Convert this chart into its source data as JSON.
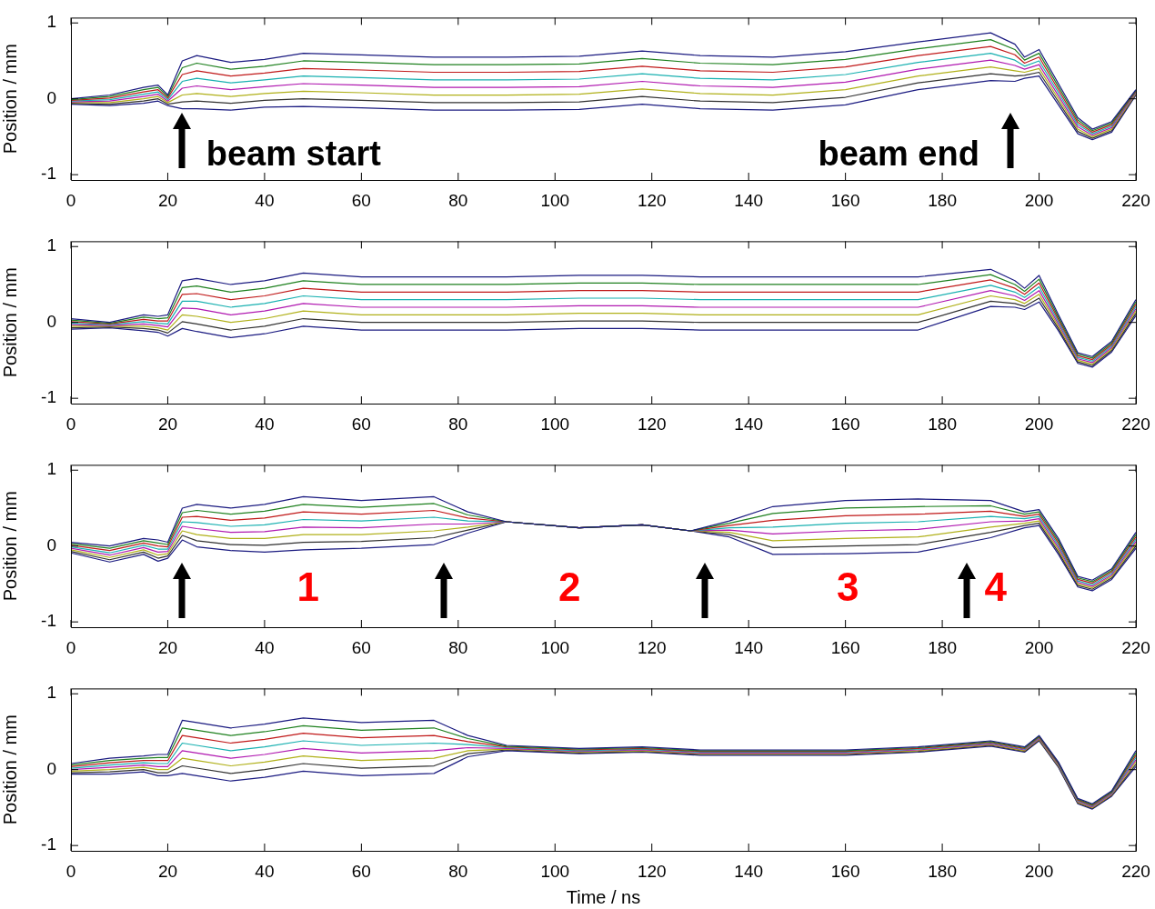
{
  "chart_data": [
    {
      "type": "line",
      "ylabel": "Position / mm",
      "xlim": [
        0,
        220
      ],
      "xticks": [
        0,
        20,
        40,
        60,
        80,
        100,
        120,
        140,
        160,
        180,
        200,
        220
      ],
      "ylim": [
        -1.07,
        1.07
      ],
      "yticks": [
        -1,
        0,
        1
      ],
      "x": [
        0,
        8,
        15,
        18,
        20,
        23,
        26,
        33,
        40,
        48,
        60,
        75,
        90,
        105,
        118,
        130,
        145,
        160,
        175,
        190,
        195,
        197,
        200,
        204,
        208,
        211,
        215,
        220
      ],
      "annotations": [
        "beam start",
        "beam end"
      ],
      "series": [
        {
          "color": "#1a1a80",
          "values": [
            0,
            0.05,
            0.15,
            0.18,
            0.05,
            0.5,
            0.57,
            0.48,
            0.52,
            0.6,
            0.58,
            0.55,
            0.55,
            0.56,
            0.63,
            0.57,
            0.55,
            0.62,
            0.75,
            0.87,
            0.72,
            0.55,
            0.65,
            0.2,
            -0.25,
            -0.4,
            -0.3,
            0.12
          ]
        },
        {
          "color": "#1e801e",
          "values": [
            -0.01,
            0.03,
            0.12,
            0.15,
            0.03,
            0.41,
            0.47,
            0.39,
            0.43,
            0.5,
            0.48,
            0.45,
            0.45,
            0.46,
            0.53,
            0.47,
            0.45,
            0.52,
            0.66,
            0.78,
            0.65,
            0.51,
            0.6,
            0.16,
            -0.28,
            -0.42,
            -0.32,
            0.11
          ]
        },
        {
          "color": "#c01818",
          "values": [
            -0.02,
            0.01,
            0.09,
            0.12,
            0.01,
            0.32,
            0.37,
            0.3,
            0.34,
            0.4,
            0.38,
            0.35,
            0.35,
            0.36,
            0.43,
            0.37,
            0.35,
            0.42,
            0.57,
            0.69,
            0.58,
            0.47,
            0.55,
            0.12,
            -0.31,
            -0.44,
            -0.34,
            0.1
          ]
        },
        {
          "color": "#18b0b0",
          "values": [
            -0.03,
            -0.01,
            0.06,
            0.09,
            -0.01,
            0.23,
            0.27,
            0.21,
            0.25,
            0.3,
            0.28,
            0.25,
            0.25,
            0.26,
            0.33,
            0.27,
            0.25,
            0.32,
            0.48,
            0.6,
            0.51,
            0.43,
            0.5,
            0.08,
            -0.34,
            -0.46,
            -0.36,
            0.09
          ]
        },
        {
          "color": "#b018b0",
          "values": [
            -0.04,
            -0.03,
            0.03,
            0.06,
            -0.03,
            0.14,
            0.17,
            0.12,
            0.16,
            0.2,
            0.18,
            0.15,
            0.15,
            0.16,
            0.23,
            0.17,
            0.15,
            0.22,
            0.39,
            0.51,
            0.44,
            0.39,
            0.45,
            0.04,
            -0.37,
            -0.48,
            -0.38,
            0.08
          ]
        },
        {
          "color": "#b0b018",
          "values": [
            -0.05,
            -0.05,
            0,
            0.03,
            -0.05,
            0.05,
            0.07,
            0.03,
            0.07,
            0.1,
            0.08,
            0.05,
            0.05,
            0.06,
            0.13,
            0.07,
            0.05,
            0.12,
            0.3,
            0.42,
            0.37,
            0.35,
            0.4,
            0,
            -0.4,
            -0.5,
            -0.4,
            0.07
          ]
        },
        {
          "color": "#303030",
          "values": [
            -0.06,
            -0.07,
            -0.03,
            0,
            -0.07,
            -0.04,
            -0.03,
            -0.06,
            -0.02,
            0,
            -0.02,
            -0.05,
            -0.05,
            -0.04,
            0.03,
            -0.03,
            -0.05,
            0.02,
            0.21,
            0.33,
            0.3,
            0.31,
            0.35,
            -0.04,
            -0.43,
            -0.52,
            -0.42,
            0.06
          ]
        },
        {
          "color": "#1a1a80",
          "values": [
            -0.07,
            -0.09,
            -0.06,
            -0.03,
            -0.09,
            -0.13,
            -0.13,
            -0.15,
            -0.11,
            -0.1,
            -0.12,
            -0.15,
            -0.15,
            -0.14,
            -0.07,
            -0.13,
            -0.15,
            -0.08,
            0.12,
            0.24,
            0.23,
            0.27,
            0.3,
            -0.08,
            -0.46,
            -0.54,
            -0.44,
            0.05
          ]
        }
      ]
    },
    {
      "type": "line",
      "ylabel": "Position / mm",
      "xlim": [
        0,
        220
      ],
      "xticks": [
        0,
        20,
        40,
        60,
        80,
        100,
        120,
        140,
        160,
        180,
        200,
        220
      ],
      "ylim": [
        -1.07,
        1.07
      ],
      "yticks": [
        -1,
        0,
        1
      ],
      "x": [
        0,
        8,
        15,
        18,
        20,
        23,
        26,
        33,
        40,
        48,
        60,
        75,
        90,
        105,
        118,
        130,
        145,
        160,
        175,
        190,
        195,
        197,
        200,
        204,
        208,
        211,
        215,
        220
      ],
      "series": [
        {
          "color": "#1a1a80",
          "values": [
            0.05,
            0,
            0.1,
            0.08,
            0.1,
            0.55,
            0.58,
            0.5,
            0.55,
            0.65,
            0.6,
            0.6,
            0.6,
            0.62,
            0.62,
            0.6,
            0.6,
            0.6,
            0.6,
            0.7,
            0.55,
            0.45,
            0.62,
            0.1,
            -0.4,
            -0.45,
            -0.25,
            0.3
          ]
        },
        {
          "color": "#1e801e",
          "values": [
            0.03,
            -0.01,
            0.07,
            0.05,
            0.06,
            0.46,
            0.48,
            0.4,
            0.45,
            0.55,
            0.5,
            0.5,
            0.5,
            0.52,
            0.52,
            0.5,
            0.5,
            0.5,
            0.5,
            0.63,
            0.5,
            0.41,
            0.57,
            0.07,
            -0.42,
            -0.47,
            -0.27,
            0.27
          ]
        },
        {
          "color": "#c01818",
          "values": [
            0.01,
            -0.02,
            0.04,
            0.02,
            0.02,
            0.37,
            0.38,
            0.3,
            0.35,
            0.45,
            0.4,
            0.4,
            0.4,
            0.42,
            0.42,
            0.4,
            0.4,
            0.4,
            0.4,
            0.56,
            0.45,
            0.37,
            0.52,
            0.04,
            -0.44,
            -0.49,
            -0.29,
            0.24
          ]
        },
        {
          "color": "#18b0b0",
          "values": [
            -0.01,
            -0.03,
            0.01,
            -0.01,
            -0.02,
            0.28,
            0.28,
            0.2,
            0.25,
            0.35,
            0.3,
            0.3,
            0.3,
            0.32,
            0.32,
            0.3,
            0.3,
            0.3,
            0.3,
            0.49,
            0.4,
            0.33,
            0.47,
            0.01,
            -0.46,
            -0.51,
            -0.31,
            0.21
          ]
        },
        {
          "color": "#b018b0",
          "values": [
            -0.03,
            -0.04,
            -0.02,
            -0.04,
            -0.06,
            0.19,
            0.18,
            0.1,
            0.15,
            0.25,
            0.2,
            0.2,
            0.2,
            0.22,
            0.22,
            0.2,
            0.2,
            0.2,
            0.2,
            0.42,
            0.35,
            0.29,
            0.42,
            -0.02,
            -0.48,
            -0.53,
            -0.33,
            0.18
          ]
        },
        {
          "color": "#b0b018",
          "values": [
            -0.05,
            -0.05,
            -0.05,
            -0.07,
            -0.1,
            0.1,
            0.08,
            0,
            0.05,
            0.15,
            0.1,
            0.1,
            0.1,
            0.12,
            0.12,
            0.1,
            0.1,
            0.1,
            0.1,
            0.35,
            0.3,
            0.25,
            0.37,
            -0.05,
            -0.5,
            -0.55,
            -0.35,
            0.15
          ]
        },
        {
          "color": "#303030",
          "values": [
            -0.07,
            -0.06,
            -0.08,
            -0.1,
            -0.14,
            0.01,
            -0.02,
            -0.1,
            -0.05,
            0.05,
            0,
            0,
            0,
            0.02,
            0.02,
            0,
            0,
            0,
            0,
            0.28,
            0.25,
            0.21,
            0.32,
            -0.08,
            -0.52,
            -0.57,
            -0.37,
            0.12
          ]
        },
        {
          "color": "#1a1a80",
          "values": [
            -0.09,
            -0.07,
            -0.11,
            -0.13,
            -0.18,
            -0.08,
            -0.12,
            -0.2,
            -0.15,
            -0.05,
            -0.1,
            -0.1,
            -0.1,
            -0.08,
            -0.08,
            -0.1,
            -0.1,
            -0.1,
            -0.1,
            0.21,
            0.2,
            0.17,
            0.27,
            -0.11,
            -0.54,
            -0.59,
            -0.39,
            0.09
          ]
        }
      ]
    },
    {
      "type": "line",
      "ylabel": "Position / mm",
      "xlim": [
        0,
        220
      ],
      "xticks": [
        0,
        20,
        40,
        60,
        80,
        100,
        120,
        140,
        160,
        180,
        200,
        220
      ],
      "ylim": [
        -1.07,
        1.07
      ],
      "yticks": [
        -1,
        0,
        1
      ],
      "x": [
        0,
        8,
        15,
        18,
        20,
        23,
        26,
        33,
        40,
        48,
        60,
        75,
        82,
        90,
        105,
        118,
        128,
        136,
        145,
        160,
        175,
        190,
        197,
        200,
        204,
        208,
        211,
        215,
        220
      ],
      "annotations": [
        "1",
        "2",
        "3",
        "4"
      ],
      "series": [
        {
          "color": "#1a1a80",
          "values": [
            0.05,
            0,
            0.1,
            0.08,
            0.05,
            0.5,
            0.55,
            0.5,
            0.55,
            0.65,
            0.6,
            0.65,
            0.45,
            0.32,
            0.24,
            0.28,
            0.2,
            0.33,
            0.52,
            0.6,
            0.62,
            0.6,
            0.45,
            0.48,
            0.1,
            -0.4,
            -0.45,
            -0.3,
            0.18
          ]
        },
        {
          "color": "#1e801e",
          "values": [
            0.03,
            -0.03,
            0.07,
            0.04,
            0.02,
            0.44,
            0.47,
            0.42,
            0.46,
            0.55,
            0.51,
            0.56,
            0.41,
            0.32,
            0.24,
            0.28,
            0.2,
            0.3,
            0.43,
            0.5,
            0.52,
            0.53,
            0.42,
            0.45,
            0.07,
            -0.42,
            -0.47,
            -0.32,
            0.15
          ]
        },
        {
          "color": "#c01818",
          "values": [
            0.01,
            -0.06,
            0.04,
            0,
            -0.01,
            0.38,
            0.39,
            0.34,
            0.37,
            0.45,
            0.42,
            0.47,
            0.37,
            0.32,
            0.24,
            0.28,
            0.2,
            0.27,
            0.34,
            0.4,
            0.42,
            0.46,
            0.39,
            0.42,
            0.04,
            -0.44,
            -0.49,
            -0.34,
            0.12
          ]
        },
        {
          "color": "#18b0b0",
          "values": [
            -0.01,
            -0.09,
            0.01,
            -0.04,
            -0.04,
            0.32,
            0.31,
            0.26,
            0.28,
            0.35,
            0.33,
            0.38,
            0.33,
            0.32,
            0.24,
            0.28,
            0.2,
            0.24,
            0.25,
            0.3,
            0.32,
            0.39,
            0.36,
            0.39,
            0.01,
            -0.46,
            -0.51,
            -0.36,
            0.09
          ]
        },
        {
          "color": "#b018b0",
          "values": [
            -0.03,
            -0.12,
            -0.02,
            -0.08,
            -0.07,
            0.26,
            0.23,
            0.18,
            0.19,
            0.25,
            0.24,
            0.29,
            0.29,
            0.32,
            0.24,
            0.28,
            0.2,
            0.21,
            0.16,
            0.2,
            0.22,
            0.32,
            0.33,
            0.36,
            -0.02,
            -0.48,
            -0.53,
            -0.38,
            0.06
          ]
        },
        {
          "color": "#b0b018",
          "values": [
            -0.05,
            -0.15,
            -0.05,
            -0.12,
            -0.1,
            0.2,
            0.15,
            0.1,
            0.1,
            0.15,
            0.15,
            0.2,
            0.25,
            0.32,
            0.24,
            0.28,
            0.2,
            0.18,
            0.07,
            0.1,
            0.12,
            0.25,
            0.3,
            0.33,
            -0.05,
            -0.5,
            -0.55,
            -0.4,
            0.03
          ]
        },
        {
          "color": "#303030",
          "values": [
            -0.07,
            -0.18,
            -0.08,
            -0.16,
            -0.13,
            0.14,
            0.07,
            0.02,
            0.01,
            0.05,
            0.06,
            0.11,
            0.21,
            0.32,
            0.24,
            0.28,
            0.2,
            0.15,
            -0.02,
            0,
            0.02,
            0.18,
            0.27,
            0.3,
            -0.08,
            -0.52,
            -0.57,
            -0.42,
            0
          ]
        },
        {
          "color": "#1a1a80",
          "values": [
            -0.09,
            -0.21,
            -0.11,
            -0.2,
            -0.16,
            0.08,
            -0.01,
            -0.06,
            -0.08,
            -0.05,
            -0.03,
            0.02,
            0.17,
            0.32,
            0.24,
            0.28,
            0.2,
            0.12,
            -0.11,
            -0.1,
            -0.08,
            0.11,
            0.24,
            0.27,
            -0.11,
            -0.54,
            -0.59,
            -0.44,
            -0.03
          ]
        }
      ]
    },
    {
      "type": "line",
      "ylabel": "Position / mm",
      "xlabel": "Time / ns",
      "xlim": [
        0,
        220
      ],
      "xticks": [
        0,
        20,
        40,
        60,
        80,
        100,
        120,
        140,
        160,
        180,
        200,
        220
      ],
      "ylim": [
        -1.07,
        1.07
      ],
      "yticks": [
        -1,
        0,
        1
      ],
      "x": [
        0,
        8,
        15,
        18,
        20,
        23,
        26,
        33,
        40,
        48,
        60,
        75,
        82,
        90,
        105,
        118,
        130,
        145,
        160,
        175,
        190,
        197,
        200,
        204,
        208,
        211,
        215,
        220
      ],
      "series": [
        {
          "color": "#1a1a80",
          "values": [
            0.08,
            0.15,
            0.18,
            0.2,
            0.2,
            0.65,
            0.62,
            0.55,
            0.6,
            0.68,
            0.62,
            0.65,
            0.45,
            0.32,
            0.28,
            0.3,
            0.26,
            0.26,
            0.26,
            0.3,
            0.38,
            0.3,
            0.45,
            0.1,
            -0.38,
            -0.45,
            -0.28,
            0.25
          ]
        },
        {
          "color": "#1e801e",
          "values": [
            0.06,
            0.12,
            0.15,
            0.16,
            0.16,
            0.55,
            0.52,
            0.45,
            0.5,
            0.58,
            0.52,
            0.55,
            0.41,
            0.31,
            0.27,
            0.29,
            0.25,
            0.25,
            0.25,
            0.29,
            0.37,
            0.29,
            0.44,
            0.09,
            -0.39,
            -0.46,
            -0.29,
            0.22
          ]
        },
        {
          "color": "#c01818",
          "values": [
            0.04,
            0.09,
            0.12,
            0.12,
            0.12,
            0.45,
            0.42,
            0.35,
            0.4,
            0.48,
            0.42,
            0.45,
            0.37,
            0.3,
            0.26,
            0.28,
            0.24,
            0.24,
            0.24,
            0.28,
            0.36,
            0.28,
            0.43,
            0.08,
            -0.4,
            -0.47,
            -0.3,
            0.19
          ]
        },
        {
          "color": "#18b0b0",
          "values": [
            0.02,
            0.06,
            0.09,
            0.08,
            0.08,
            0.35,
            0.32,
            0.25,
            0.3,
            0.38,
            0.32,
            0.35,
            0.33,
            0.29,
            0.25,
            0.27,
            0.23,
            0.23,
            0.23,
            0.27,
            0.35,
            0.27,
            0.42,
            0.07,
            -0.41,
            -0.48,
            -0.31,
            0.16
          ]
        },
        {
          "color": "#b018b0",
          "values": [
            0,
            0.03,
            0.06,
            0.04,
            0.04,
            0.25,
            0.22,
            0.15,
            0.2,
            0.28,
            0.22,
            0.25,
            0.29,
            0.28,
            0.24,
            0.26,
            0.22,
            0.22,
            0.22,
            0.26,
            0.34,
            0.26,
            0.41,
            0.06,
            -0.42,
            -0.49,
            -0.32,
            0.13
          ]
        },
        {
          "color": "#b0b018",
          "values": [
            -0.02,
            0,
            0.03,
            0,
            0,
            0.15,
            0.12,
            0.05,
            0.1,
            0.18,
            0.12,
            0.15,
            0.25,
            0.27,
            0.23,
            0.25,
            0.21,
            0.21,
            0.21,
            0.25,
            0.33,
            0.25,
            0.4,
            0.05,
            -0.43,
            -0.5,
            -0.33,
            0.1
          ]
        },
        {
          "color": "#303030",
          "values": [
            -0.04,
            -0.03,
            0,
            -0.04,
            -0.04,
            0.05,
            0.02,
            -0.05,
            0,
            0.08,
            0.02,
            0.05,
            0.21,
            0.26,
            0.22,
            0.24,
            0.2,
            0.2,
            0.2,
            0.24,
            0.32,
            0.24,
            0.39,
            0.04,
            -0.44,
            -0.51,
            -0.34,
            0.07
          ]
        },
        {
          "color": "#1a1a80",
          "values": [
            -0.06,
            -0.06,
            -0.03,
            -0.08,
            -0.08,
            -0.05,
            -0.08,
            -0.15,
            -0.1,
            -0.02,
            -0.08,
            -0.05,
            0.17,
            0.25,
            0.21,
            0.23,
            0.19,
            0.19,
            0.19,
            0.23,
            0.31,
            0.23,
            0.38,
            0.03,
            -0.45,
            -0.52,
            -0.35,
            0.04
          ]
        }
      ]
    }
  ]
}
